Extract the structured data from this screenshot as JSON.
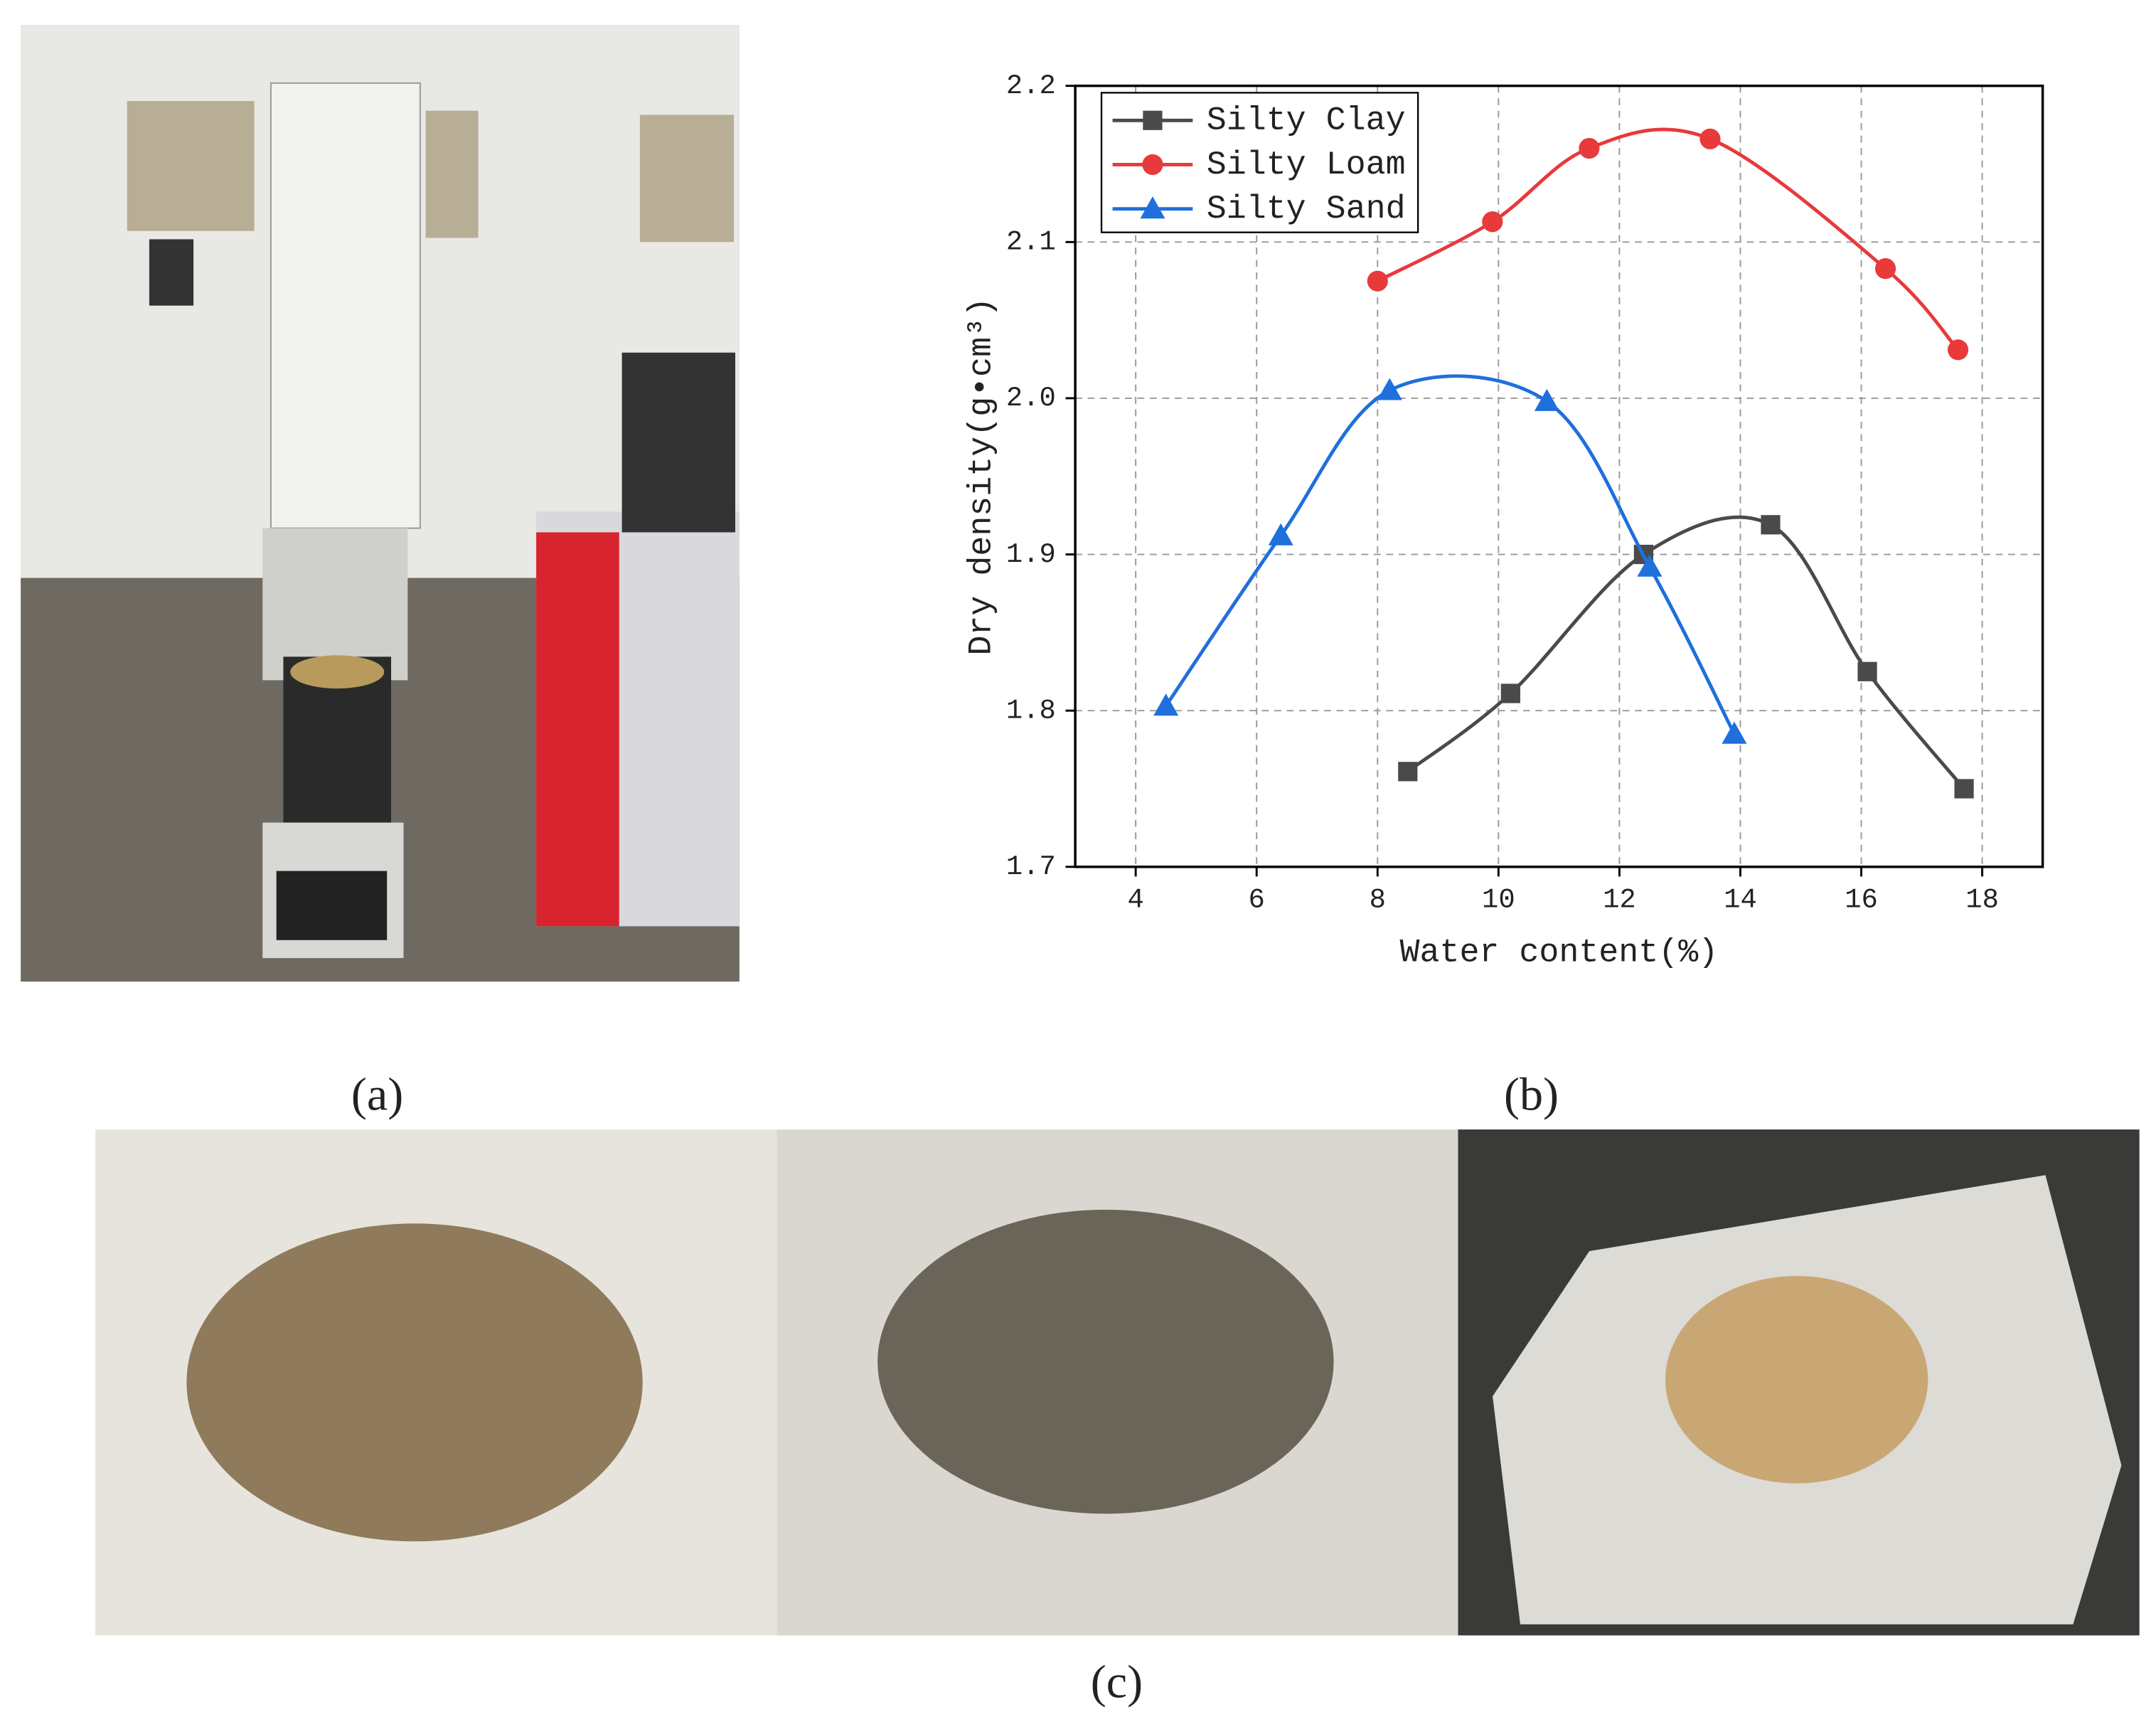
{
  "chart_data": {
    "type": "line",
    "xlabel": "Water content(%)",
    "ylabel": "Dry density(g•cm³)",
    "xlim": [
      3,
      19
    ],
    "xticks": [
      4,
      6,
      8,
      10,
      12,
      14,
      16,
      18
    ],
    "ylim": [
      1.7,
      2.2
    ],
    "yticks": [
      1.7,
      1.8,
      1.9,
      {
        "value": 2,
        "label": "2.0"
      },
      2.1,
      2.2
    ],
    "grid": true,
    "legend": "upper left",
    "smooth": true,
    "series": [
      {
        "name": "Silty Clay",
        "color": "#4a4a4a",
        "marker": "square",
        "x": [
          8.5,
          10.2,
          12.4,
          14.5,
          16.1,
          17.7
        ],
        "values": [
          1.761,
          1.811,
          1.9,
          1.919,
          1.825,
          1.75
        ]
      },
      {
        "name": "Silty Loam",
        "color": "#e8393b",
        "marker": "circle",
        "x": [
          8.0,
          9.9,
          11.5,
          13.5,
          16.4,
          17.6
        ],
        "values": [
          2.075,
          2.113,
          2.16,
          2.166,
          2.083,
          2.031
        ]
      },
      {
        "name": "Silty Sand",
        "color": "#1f6fdc",
        "marker": "triangle",
        "x": [
          4.5,
          6.4,
          8.2,
          10.8,
          12.5,
          13.9
        ],
        "values": [
          1.803,
          1.912,
          2.005,
          1.998,
          1.892,
          1.785
        ]
      }
    ]
  },
  "panel_labels": [
    "(a)",
    "(b)",
    "(c)"
  ]
}
